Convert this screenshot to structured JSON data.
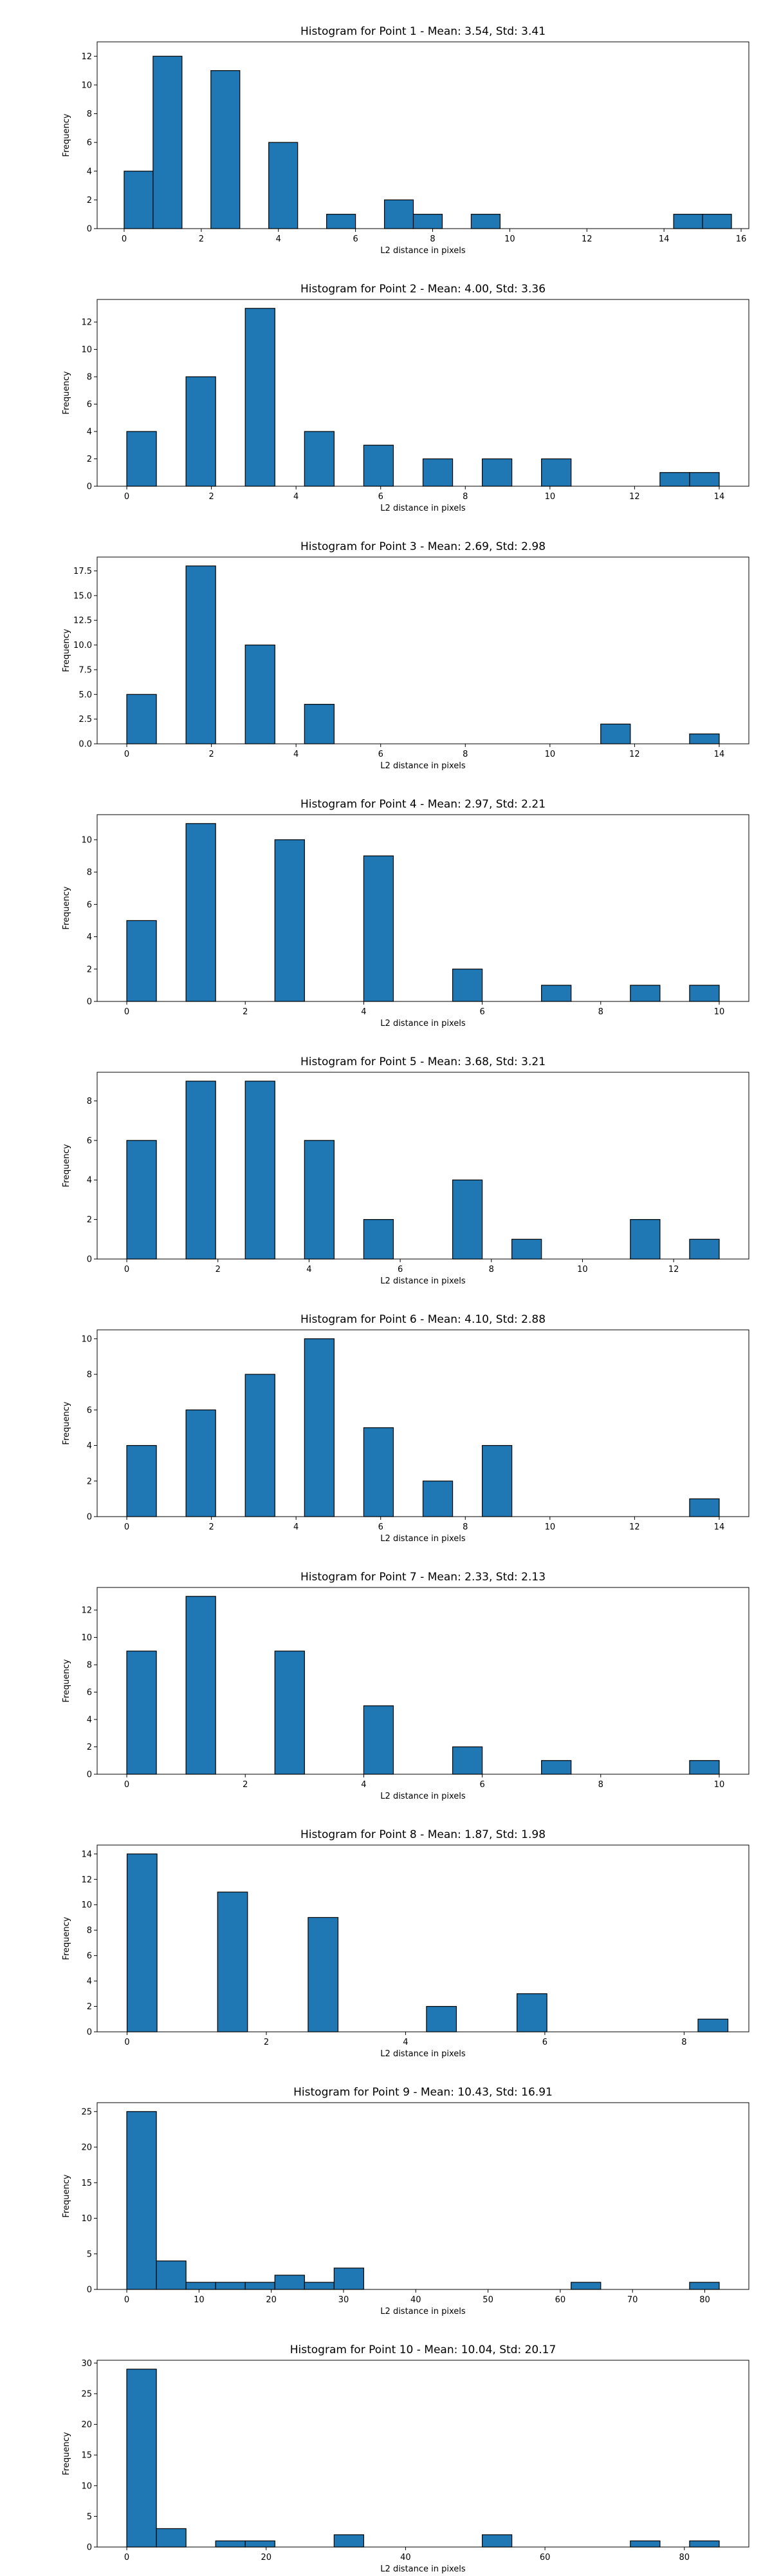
{
  "chart_data": [
    {
      "type": "bar",
      "title": "Histogram for Point 1 - Mean: 3.54, Std: 3.41",
      "xlabel": "L2 distance in pixels",
      "ylabel": "Frequency",
      "xlim": [
        -0.7,
        16.2
      ],
      "ylim": [
        0,
        13
      ],
      "xticks": [
        "0",
        "2",
        "4",
        "6",
        "8",
        "10",
        "12",
        "14",
        "16"
      ],
      "yticks": [
        "0",
        "2",
        "4",
        "6",
        "8",
        "10",
        "12"
      ],
      "bin_width": 0.75,
      "bars": [
        {
          "x": 0.0,
          "value": 4
        },
        {
          "x": 0.75,
          "value": 12
        },
        {
          "x": 2.25,
          "value": 11
        },
        {
          "x": 3.75,
          "value": 6
        },
        {
          "x": 5.25,
          "value": 1
        },
        {
          "x": 6.75,
          "value": 2
        },
        {
          "x": 7.5,
          "value": 1
        },
        {
          "x": 9.0,
          "value": 1
        },
        {
          "x": 14.25,
          "value": 1
        },
        {
          "x": 15.0,
          "value": 1
        }
      ]
    },
    {
      "type": "bar",
      "title": "Histogram for Point 2 - Mean: 4.00, Std: 3.36",
      "xlabel": "L2 distance in pixels",
      "ylabel": "Frequency",
      "xlim": [
        -0.7,
        14.7
      ],
      "ylim": [
        0,
        13.65
      ],
      "xticks": [
        "0",
        "2",
        "4",
        "6",
        "8",
        "10",
        "12",
        "14"
      ],
      "yticks": [
        "0",
        "2",
        "4",
        "6",
        "8",
        "10",
        "12"
      ],
      "bin_width": 0.7,
      "bars": [
        {
          "x": 0.0,
          "value": 4
        },
        {
          "x": 1.4,
          "value": 8
        },
        {
          "x": 2.8,
          "value": 13
        },
        {
          "x": 4.2,
          "value": 4
        },
        {
          "x": 5.6,
          "value": 3
        },
        {
          "x": 7.0,
          "value": 2
        },
        {
          "x": 8.4,
          "value": 2
        },
        {
          "x": 9.8,
          "value": 2
        },
        {
          "x": 12.6,
          "value": 1
        },
        {
          "x": 13.3,
          "value": 1
        }
      ]
    },
    {
      "type": "bar",
      "title": "Histogram for Point 3 - Mean: 2.69, Std: 2.98",
      "xlabel": "L2 distance in pixels",
      "ylabel": "Frequency",
      "xlim": [
        -0.7,
        14.7
      ],
      "ylim": [
        0,
        18.9
      ],
      "xticks": [
        "0",
        "2",
        "4",
        "6",
        "8",
        "10",
        "12",
        "14"
      ],
      "yticks": [
        "0.0",
        "2.5",
        "5.0",
        "7.5",
        "10.0",
        "12.5",
        "15.0",
        "17.5"
      ],
      "bin_width": 0.7,
      "bars": [
        {
          "x": 0.0,
          "value": 5
        },
        {
          "x": 1.4,
          "value": 18
        },
        {
          "x": 2.8,
          "value": 10
        },
        {
          "x": 4.2,
          "value": 4
        },
        {
          "x": 11.2,
          "value": 2
        },
        {
          "x": 13.3,
          "value": 1
        }
      ]
    },
    {
      "type": "bar",
      "title": "Histogram for Point 4 - Mean: 2.97, Std: 2.21",
      "xlabel": "L2 distance in pixels",
      "ylabel": "Frequency",
      "xlim": [
        -0.5,
        10.5
      ],
      "ylim": [
        0,
        11.55
      ],
      "xticks": [
        "0",
        "2",
        "4",
        "6",
        "8",
        "10"
      ],
      "yticks": [
        "0",
        "2",
        "4",
        "6",
        "8",
        "10"
      ],
      "bin_width": 0.5,
      "bars": [
        {
          "x": 0.0,
          "value": 5
        },
        {
          "x": 1.0,
          "value": 11
        },
        {
          "x": 2.5,
          "value": 10
        },
        {
          "x": 4.0,
          "value": 9
        },
        {
          "x": 5.5,
          "value": 2
        },
        {
          "x": 7.0,
          "value": 1
        },
        {
          "x": 8.5,
          "value": 1
        },
        {
          "x": 9.5,
          "value": 1
        }
      ]
    },
    {
      "type": "bar",
      "title": "Histogram for Point 5 - Mean: 3.68, Std: 3.21",
      "xlabel": "L2 distance in pixels",
      "ylabel": "Frequency",
      "xlim": [
        -0.65,
        13.65
      ],
      "ylim": [
        0,
        9.45
      ],
      "xticks": [
        "0",
        "2",
        "4",
        "6",
        "8",
        "10",
        "12"
      ],
      "yticks": [
        "0",
        "2",
        "4",
        "6",
        "8"
      ],
      "bin_width": 0.65,
      "bars": [
        {
          "x": 0.0,
          "value": 6
        },
        {
          "x": 1.3,
          "value": 9
        },
        {
          "x": 2.6,
          "value": 9
        },
        {
          "x": 3.9,
          "value": 6
        },
        {
          "x": 5.2,
          "value": 2
        },
        {
          "x": 7.15,
          "value": 4
        },
        {
          "x": 8.45,
          "value": 1
        },
        {
          "x": 11.05,
          "value": 2
        },
        {
          "x": 12.35,
          "value": 1
        }
      ]
    },
    {
      "type": "bar",
      "title": "Histogram for Point 6 - Mean: 4.10, Std: 2.88",
      "xlabel": "L2 distance in pixels",
      "ylabel": "Frequency",
      "xlim": [
        -0.7,
        14.7
      ],
      "ylim": [
        0,
        10.5
      ],
      "xticks": [
        "0",
        "2",
        "4",
        "6",
        "8",
        "10",
        "12",
        "14"
      ],
      "yticks": [
        "0",
        "2",
        "4",
        "6",
        "8",
        "10"
      ],
      "bin_width": 0.7,
      "bars": [
        {
          "x": 0.0,
          "value": 4
        },
        {
          "x": 1.4,
          "value": 6
        },
        {
          "x": 2.8,
          "value": 8
        },
        {
          "x": 4.2,
          "value": 10
        },
        {
          "x": 5.6,
          "value": 5
        },
        {
          "x": 7.0,
          "value": 2
        },
        {
          "x": 8.4,
          "value": 4
        },
        {
          "x": 13.3,
          "value": 1
        }
      ]
    },
    {
      "type": "bar",
      "title": "Histogram for Point 7 - Mean: 2.33, Std: 2.13",
      "xlabel": "L2 distance in pixels",
      "ylabel": "Frequency",
      "xlim": [
        -0.5,
        10.5
      ],
      "ylim": [
        0,
        13.65
      ],
      "xticks": [
        "0",
        "2",
        "4",
        "6",
        "8",
        "10"
      ],
      "yticks": [
        "0",
        "2",
        "4",
        "6",
        "8",
        "10",
        "12"
      ],
      "bin_width": 0.5,
      "bars": [
        {
          "x": 0.0,
          "value": 9
        },
        {
          "x": 1.0,
          "value": 13
        },
        {
          "x": 2.5,
          "value": 9
        },
        {
          "x": 4.0,
          "value": 5
        },
        {
          "x": 5.5,
          "value": 2
        },
        {
          "x": 7.0,
          "value": 1
        },
        {
          "x": 9.5,
          "value": 1
        }
      ]
    },
    {
      "type": "bar",
      "title": "Histogram for Point 8 - Mean: 1.87, Std: 1.98",
      "xlabel": "L2 distance in pixels",
      "ylabel": "Frequency",
      "xlim": [
        -0.43,
        8.93
      ],
      "ylim": [
        0,
        14.7
      ],
      "xticks": [
        "0",
        "2",
        "4",
        "6",
        "8"
      ],
      "yticks": [
        "0",
        "2",
        "4",
        "6",
        "8",
        "10",
        "12",
        "14"
      ],
      "bin_width": 0.43,
      "bars": [
        {
          "x": 0.0,
          "value": 14
        },
        {
          "x": 1.3,
          "value": 11
        },
        {
          "x": 2.6,
          "value": 9
        },
        {
          "x": 4.3,
          "value": 2
        },
        {
          "x": 5.6,
          "value": 3
        },
        {
          "x": 8.2,
          "value": 1
        }
      ]
    },
    {
      "type": "bar",
      "title": "Histogram for Point 9 - Mean: 10.43, Std: 16.91",
      "xlabel": "L2 distance in pixels",
      "ylabel": "Frequency",
      "xlim": [
        -4.1,
        86.1
      ],
      "ylim": [
        0,
        26.25
      ],
      "xticks": [
        "0",
        "10",
        "20",
        "30",
        "40",
        "50",
        "60",
        "70",
        "80"
      ],
      "yticks": [
        "0",
        "5",
        "10",
        "15",
        "20",
        "25"
      ],
      "bin_width": 4.1,
      "bars": [
        {
          "x": 0.0,
          "value": 25
        },
        {
          "x": 4.1,
          "value": 4
        },
        {
          "x": 8.2,
          "value": 1
        },
        {
          "x": 12.3,
          "value": 1
        },
        {
          "x": 16.4,
          "value": 1
        },
        {
          "x": 20.5,
          "value": 2
        },
        {
          "x": 24.6,
          "value": 1
        },
        {
          "x": 28.7,
          "value": 3
        },
        {
          "x": 61.5,
          "value": 1
        },
        {
          "x": 77.9,
          "value": 1
        }
      ]
    },
    {
      "type": "bar",
      "title": "Histogram for Point 10 - Mean: 10.04, Std: 20.17",
      "xlabel": "L2 distance in pixels",
      "ylabel": "Frequency",
      "xlim": [
        -4.25,
        89.25
      ],
      "ylim": [
        0,
        30.45
      ],
      "xticks": [
        "0",
        "20",
        "40",
        "60",
        "80"
      ],
      "yticks": [
        "0",
        "5",
        "10",
        "15",
        "20",
        "25",
        "30"
      ],
      "bin_width": 4.25,
      "bars": [
        {
          "x": 0.0,
          "value": 29
        },
        {
          "x": 4.25,
          "value": 3
        },
        {
          "x": 12.75,
          "value": 1
        },
        {
          "x": 17.0,
          "value": 1
        },
        {
          "x": 29.75,
          "value": 2
        },
        {
          "x": 51.0,
          "value": 2
        },
        {
          "x": 72.25,
          "value": 1
        },
        {
          "x": 80.75,
          "value": 1
        }
      ]
    }
  ]
}
